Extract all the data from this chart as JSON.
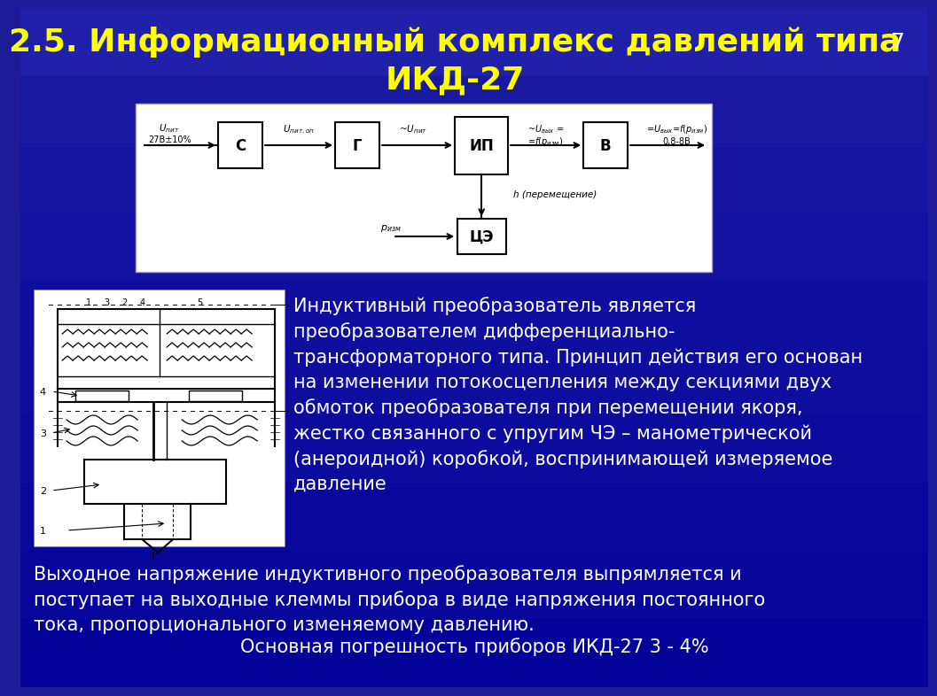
{
  "title_line1": "2.5. Информационный комплекс давлений типа",
  "title_line2": "ИКД-27",
  "title_color": "#FFFF00",
  "title_fontsize": 26,
  "page_number": "7",
  "bg_color": "#1C1C99",
  "text_color": "#FFFFFF",
  "body_text1": "Индуктивный преобразователь является\nпреобразователем дифференциально-\nтрансформаторного типа. Принцип действия его основан\nна изменении потокосцепления между секциями двух\nобмоток преобразователя при перемещении якоря,\nжестко связанного с упругим ЧЭ – манометрической\n(анероидной) коробкой, воспринимающей измеряемое\nдавление",
  "body_text2": "Выходное напряжение индуктивного преобразователя выпрямляется и\nпоступает на выходные клеммы прибора в виде напряжения постоянного\nтока, пропорционального изменяемому давлению.",
  "body_text3": "Основная погрешность приборов ИКД-27 3 - 4%",
  "body_fontsize": 15,
  "bg_gradient_top": "#0000AA",
  "bg_gradient_bottom": "#000080"
}
